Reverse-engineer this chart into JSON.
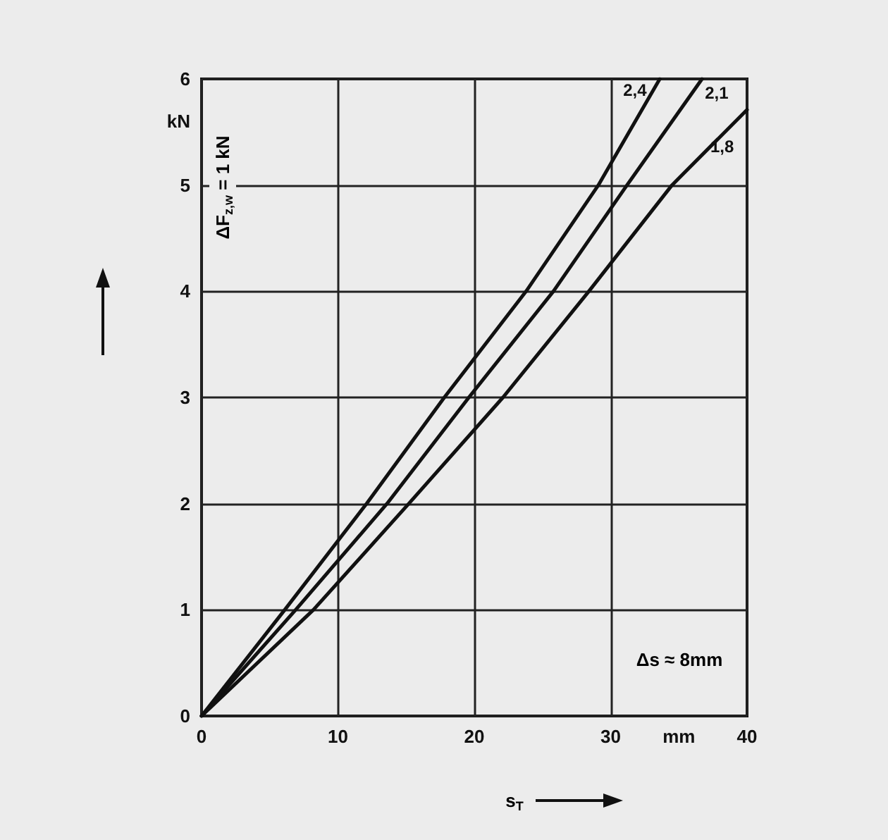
{
  "chart_data": {
    "type": "line",
    "xlabel": "s$_{T}$",
    "xlim": [
      0,
      40
    ],
    "ylim": [
      0,
      6
    ],
    "xticks": [
      0,
      10,
      20,
      30,
      {
        "value": 35,
        "label": "mm"
      },
      40
    ],
    "yticks": [
      0,
      1,
      2,
      3,
      4,
      5,
      {
        "value": 5.6,
        "label": "kN"
      },
      6
    ],
    "grid": true,
    "legend": false,
    "marker": "none",
    "line_style": "solid",
    "series": [
      {
        "name": "2,4",
        "color": "#111111",
        "x": [
          0,
          6.1,
          12.1,
          17.8,
          23.8,
          29.1,
          33.6
        ],
        "values": [
          0,
          1,
          2,
          3,
          4,
          5,
          6
        ]
      },
      {
        "name": "2,1",
        "color": "#111111",
        "x": [
          0,
          6.9,
          13.6,
          19.6,
          25.8,
          31.2,
          36.7
        ],
        "values": [
          0,
          1,
          2,
          3,
          4,
          5,
          6
        ]
      },
      {
        "name": "1,8",
        "color": "#111111",
        "x": [
          0,
          8.2,
          15.2,
          22.1,
          28.4,
          34.5,
          40
        ],
        "values": [
          0,
          1,
          2,
          3,
          4,
          5,
          5.71
        ]
      }
    ],
    "annotations": [
      "ΔF$_{z,w}$ = 1 kN",
      "Δs ≈ 8mm"
    ]
  }
}
